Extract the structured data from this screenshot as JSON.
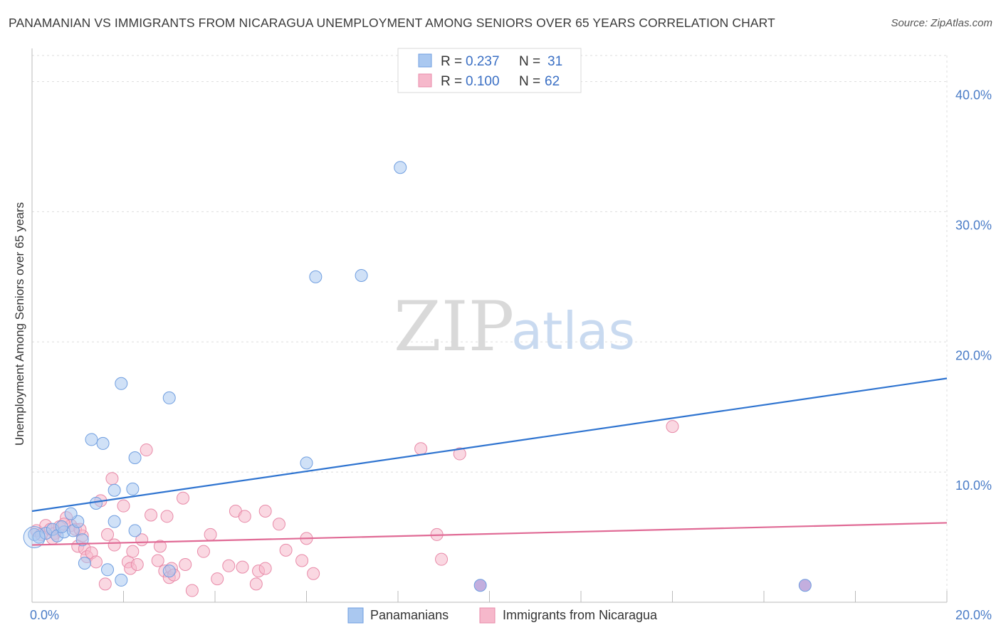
{
  "header": {
    "title": "PANAMANIAN VS IMMIGRANTS FROM NICARAGUA UNEMPLOYMENT AMONG SENIORS OVER 65 YEARS CORRELATION CHART",
    "source": "Source: ZipAtlas.com"
  },
  "watermark": {
    "zip": "ZIP",
    "atlas": "atlas"
  },
  "legend": {
    "r_label": "R =",
    "n_label": "N =",
    "series": [
      {
        "r": "0.237",
        "n": "31"
      },
      {
        "r": "0.100",
        "n": "62"
      }
    ]
  },
  "colors": {
    "blue_fill": "#aac8f0",
    "blue_stroke": "#6f9ee0",
    "blue_line": "#2f74d0",
    "pink_fill": "#f6b8cb",
    "pink_stroke": "#e88aa8",
    "pink_line": "#e06a95",
    "purple_fill": "#b9a0d8",
    "grid": "#dddddd"
  },
  "chart_data": {
    "type": "scatter",
    "title": "PANAMANIAN VS IMMIGRANTS FROM NICARAGUA UNEMPLOYMENT AMONG SENIORS OVER 65 YEARS CORRELATION CHART",
    "xlabel": "",
    "ylabel": "Unemployment Among Seniors over 65 years",
    "xlim": [
      0,
      20
    ],
    "ylim": [
      0,
      42
    ],
    "x_ticks": [
      {
        "value": 0,
        "label": "0.0%"
      },
      {
        "value": 20,
        "label": "20.0%"
      }
    ],
    "y_ticks": [
      {
        "value": 10,
        "label": "10.0%"
      },
      {
        "value": 20,
        "label": "20.0%"
      },
      {
        "value": 30,
        "label": "30.0%"
      },
      {
        "value": 40,
        "label": "40.0%"
      }
    ],
    "series": [
      {
        "name": "Panamanians",
        "color": "#aac8f0",
        "trend": {
          "x": [
            0,
            20
          ],
          "y": [
            7.0,
            17.2
          ]
        },
        "points": [
          [
            0.05,
            5.2
          ],
          [
            0.15,
            5.0
          ],
          [
            0.3,
            5.3
          ],
          [
            0.45,
            5.6
          ],
          [
            0.55,
            5.1
          ],
          [
            0.7,
            5.4
          ],
          [
            0.65,
            5.8
          ],
          [
            0.9,
            5.5
          ],
          [
            1.1,
            4.8
          ],
          [
            1.15,
            3.0
          ],
          [
            1.0,
            6.2
          ],
          [
            0.85,
            6.8
          ],
          [
            1.3,
            12.5
          ],
          [
            1.55,
            12.2
          ],
          [
            1.95,
            16.8
          ],
          [
            2.25,
            11.1
          ],
          [
            1.4,
            7.6
          ],
          [
            1.8,
            6.2
          ],
          [
            1.8,
            8.6
          ],
          [
            2.2,
            8.7
          ],
          [
            1.65,
            2.5
          ],
          [
            1.95,
            1.7
          ],
          [
            2.25,
            5.5
          ],
          [
            3.0,
            15.7
          ],
          [
            3.0,
            2.4
          ],
          [
            6.2,
            25.0
          ],
          [
            7.2,
            25.1
          ],
          [
            8.05,
            33.4
          ],
          [
            6.0,
            10.7
          ],
          [
            9.8,
            1.3
          ],
          [
            16.9,
            1.3
          ]
        ]
      },
      {
        "name": "Immigrants from Nicaragua",
        "color": "#f6b8cb",
        "trend": {
          "x": [
            0,
            20
          ],
          "y": [
            4.4,
            6.1
          ]
        },
        "points": [
          [
            0.1,
            5.5
          ],
          [
            0.2,
            5.2
          ],
          [
            0.3,
            5.9
          ],
          [
            0.4,
            5.6
          ],
          [
            0.5,
            5.3
          ],
          [
            0.6,
            5.8
          ],
          [
            0.75,
            6.5
          ],
          [
            0.85,
            5.9
          ],
          [
            0.95,
            5.6
          ],
          [
            1.0,
            4.3
          ],
          [
            1.1,
            5.1
          ],
          [
            1.15,
            4.1
          ],
          [
            1.2,
            3.5
          ],
          [
            1.3,
            3.8
          ],
          [
            1.4,
            3.1
          ],
          [
            1.5,
            7.8
          ],
          [
            1.75,
            9.5
          ],
          [
            1.6,
            1.4
          ],
          [
            1.65,
            5.2
          ],
          [
            1.8,
            4.4
          ],
          [
            2.0,
            7.4
          ],
          [
            2.1,
            3.1
          ],
          [
            2.15,
            2.6
          ],
          [
            2.2,
            3.9
          ],
          [
            2.3,
            2.9
          ],
          [
            2.4,
            4.8
          ],
          [
            2.5,
            11.7
          ],
          [
            2.6,
            6.7
          ],
          [
            2.75,
            3.2
          ],
          [
            2.8,
            4.3
          ],
          [
            2.9,
            2.4
          ],
          [
            3.0,
            1.9
          ],
          [
            3.05,
            2.6
          ],
          [
            3.1,
            2.1
          ],
          [
            3.3,
            8.0
          ],
          [
            3.35,
            2.9
          ],
          [
            3.5,
            0.9
          ],
          [
            3.75,
            3.9
          ],
          [
            3.9,
            5.2
          ],
          [
            4.05,
            1.8
          ],
          [
            4.3,
            2.8
          ],
          [
            4.45,
            7.0
          ],
          [
            4.6,
            2.7
          ],
          [
            4.65,
            6.6
          ],
          [
            4.9,
            1.4
          ],
          [
            4.95,
            2.4
          ],
          [
            5.1,
            2.6
          ],
          [
            5.4,
            6.0
          ],
          [
            5.55,
            4.0
          ],
          [
            5.9,
            3.2
          ],
          [
            6.0,
            4.9
          ],
          [
            6.15,
            2.2
          ],
          [
            8.5,
            11.8
          ],
          [
            8.85,
            5.2
          ],
          [
            8.95,
            3.3
          ],
          [
            9.35,
            11.4
          ],
          [
            14.0,
            13.5
          ],
          [
            0.45,
            4.9
          ],
          [
            0.7,
            6.0
          ],
          [
            1.05,
            5.6
          ],
          [
            2.95,
            6.6
          ],
          [
            5.1,
            7.0
          ]
        ]
      }
    ],
    "bottom_legend": [
      "Panamanians",
      "Immigrants from Nicaragua"
    ],
    "grid": true,
    "legend_position": "top-center"
  }
}
